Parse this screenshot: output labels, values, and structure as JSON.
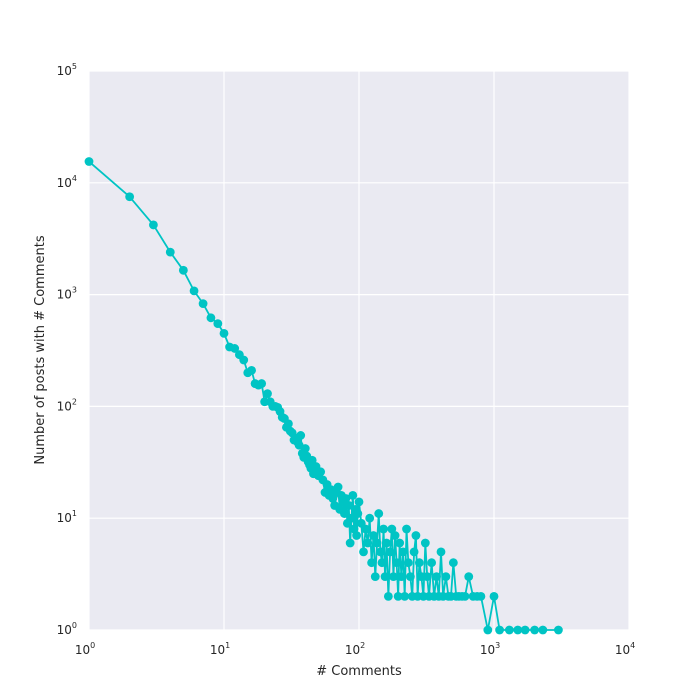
{
  "chart_data": {
    "type": "line",
    "title": "",
    "xlabel": "# Comments",
    "ylabel": "Number of posts with # Comments",
    "xscale": "log",
    "yscale": "log",
    "xlim": [
      1,
      10000
    ],
    "ylim": [
      1,
      100000
    ],
    "grid": true,
    "x_ticks": [
      {
        "base": "10",
        "exp": "0"
      },
      {
        "base": "10",
        "exp": "1"
      },
      {
        "base": "10",
        "exp": "2"
      },
      {
        "base": "10",
        "exp": "3"
      },
      {
        "base": "10",
        "exp": "4"
      }
    ],
    "y_ticks": [
      {
        "base": "10",
        "exp": "0"
      },
      {
        "base": "10",
        "exp": "1"
      },
      {
        "base": "10",
        "exp": "2"
      },
      {
        "base": "10",
        "exp": "3"
      },
      {
        "base": "10",
        "exp": "4"
      },
      {
        "base": "10",
        "exp": "5"
      }
    ],
    "colors": {
      "series": "#00c4c4",
      "plot_bg": "#eaeaf2",
      "grid": "#ffffff"
    },
    "series": [
      {
        "marker": "circle",
        "points": [
          [
            1,
            15500
          ],
          [
            2,
            7500
          ],
          [
            3,
            4200
          ],
          [
            4,
            2400
          ],
          [
            5,
            1650
          ],
          [
            6,
            1080
          ],
          [
            7,
            830
          ],
          [
            8,
            620
          ],
          [
            9,
            550
          ],
          [
            10,
            450
          ],
          [
            11,
            340
          ],
          [
            12,
            330
          ],
          [
            13,
            290
          ],
          [
            14,
            260
          ],
          [
            15,
            200
          ],
          [
            16,
            210
          ],
          [
            17,
            160
          ],
          [
            18,
            155
          ],
          [
            19,
            160
          ],
          [
            20,
            110
          ],
          [
            21,
            130
          ],
          [
            22,
            110
          ],
          [
            23,
            100
          ],
          [
            24,
            100
          ],
          [
            25,
            98
          ],
          [
            26,
            90
          ],
          [
            27,
            80
          ],
          [
            28,
            78
          ],
          [
            29,
            65
          ],
          [
            30,
            70
          ],
          [
            31,
            60
          ],
          [
            32,
            58
          ],
          [
            33,
            50
          ],
          [
            34,
            52
          ],
          [
            35,
            48
          ],
          [
            36,
            45
          ],
          [
            37,
            55
          ],
          [
            38,
            38
          ],
          [
            39,
            35
          ],
          [
            40,
            42
          ],
          [
            41,
            36
          ],
          [
            42,
            32
          ],
          [
            43,
            30
          ],
          [
            44,
            28
          ],
          [
            45,
            33
          ],
          [
            46,
            25
          ],
          [
            47,
            27
          ],
          [
            48,
            29
          ],
          [
            50,
            24
          ],
          [
            52,
            26
          ],
          [
            54,
            22
          ],
          [
            56,
            17
          ],
          [
            58,
            20
          ],
          [
            60,
            16
          ],
          [
            62,
            18
          ],
          [
            64,
            15
          ],
          [
            66,
            13
          ],
          [
            68,
            17
          ],
          [
            70,
            19
          ],
          [
            72,
            12
          ],
          [
            74,
            16
          ],
          [
            76,
            14
          ],
          [
            78,
            11
          ],
          [
            80,
            15
          ],
          [
            82,
            9
          ],
          [
            84,
            13
          ],
          [
            86,
            6
          ],
          [
            88,
            10
          ],
          [
            90,
            16
          ],
          [
            92,
            8
          ],
          [
            94,
            12
          ],
          [
            96,
            7
          ],
          [
            98,
            11
          ],
          [
            100,
            14
          ],
          [
            104,
            9
          ],
          [
            108,
            5
          ],
          [
            112,
            8
          ],
          [
            116,
            6
          ],
          [
            120,
            10
          ],
          [
            124,
            4
          ],
          [
            128,
            7
          ],
          [
            132,
            3
          ],
          [
            136,
            6
          ],
          [
            140,
            11
          ],
          [
            144,
            5
          ],
          [
            148,
            4
          ],
          [
            152,
            8
          ],
          [
            156,
            3
          ],
          [
            160,
            6
          ],
          [
            165,
            2
          ],
          [
            170,
            5
          ],
          [
            175,
            8
          ],
          [
            180,
            3
          ],
          [
            185,
            7
          ],
          [
            190,
            4
          ],
          [
            195,
            2
          ],
          [
            200,
            6
          ],
          [
            206,
            3
          ],
          [
            212,
            5
          ],
          [
            218,
            2
          ],
          [
            225,
            8
          ],
          [
            232,
            4
          ],
          [
            240,
            3
          ],
          [
            248,
            2
          ],
          [
            256,
            5
          ],
          [
            264,
            7
          ],
          [
            272,
            2
          ],
          [
            280,
            4
          ],
          [
            290,
            3
          ],
          [
            300,
            2
          ],
          [
            310,
            6
          ],
          [
            320,
            3
          ],
          [
            330,
            2
          ],
          [
            345,
            4
          ],
          [
            360,
            2
          ],
          [
            375,
            3
          ],
          [
            390,
            2
          ],
          [
            405,
            5
          ],
          [
            420,
            2
          ],
          [
            440,
            3
          ],
          [
            460,
            2
          ],
          [
            480,
            2
          ],
          [
            500,
            4
          ],
          [
            525,
            2
          ],
          [
            550,
            2
          ],
          [
            580,
            2
          ],
          [
            610,
            2
          ],
          [
            650,
            3
          ],
          [
            700,
            2
          ],
          [
            750,
            2
          ],
          [
            800,
            2
          ],
          [
            900,
            1
          ],
          [
            1000,
            2
          ],
          [
            1100,
            1
          ],
          [
            1300,
            1
          ],
          [
            1500,
            1
          ],
          [
            1700,
            1
          ],
          [
            2000,
            1
          ],
          [
            2300,
            1
          ],
          [
            3000,
            1
          ]
        ]
      }
    ]
  }
}
